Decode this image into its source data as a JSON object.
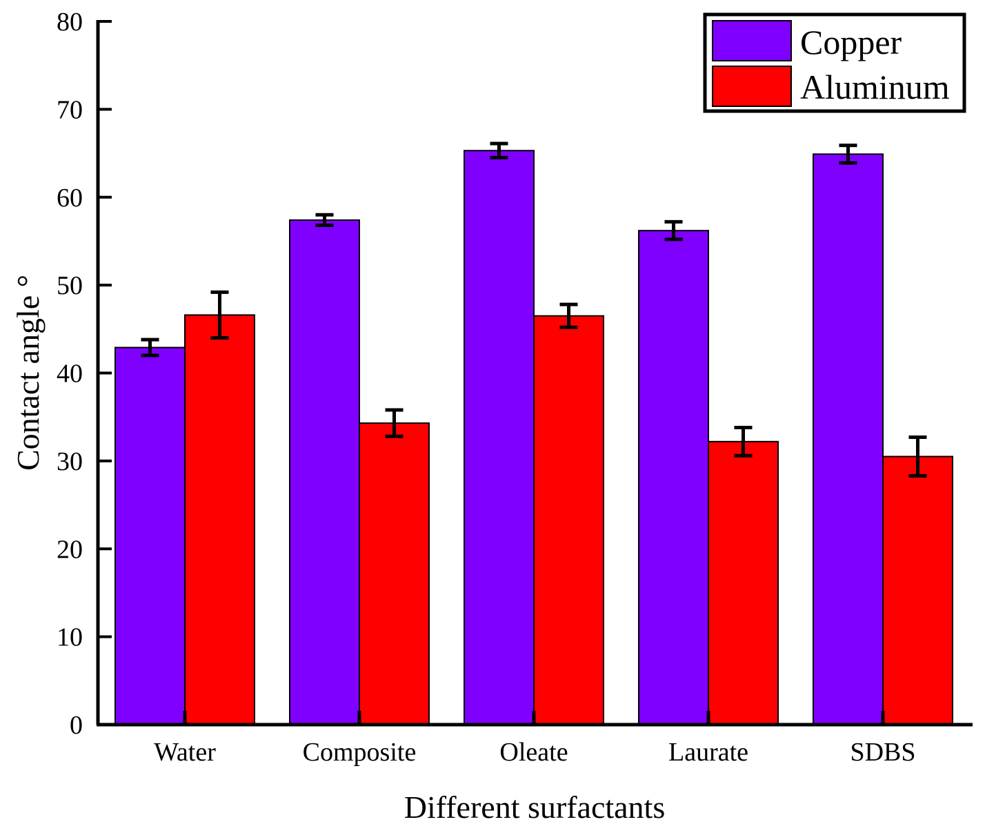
{
  "chart_data": {
    "type": "bar",
    "title": "",
    "xlabel": "Different surfactants",
    "ylabel": "Contact angle °",
    "ylim": [
      0,
      80
    ],
    "yticks": [
      0,
      10,
      20,
      30,
      40,
      50,
      60,
      70,
      80
    ],
    "grid": false,
    "legend_position": "top-right",
    "categories": [
      "Water",
      "Composite",
      "Oleate",
      "Laurate",
      "SDBS"
    ],
    "series": [
      {
        "name": "Copper",
        "color": "#8000ff",
        "values": [
          42.9,
          57.4,
          65.3,
          56.2,
          64.9
        ],
        "errors": [
          0.9,
          0.6,
          0.8,
          1.0,
          1.0
        ]
      },
      {
        "name": "Aluminum",
        "color": "#ff0000",
        "values": [
          46.6,
          34.3,
          46.5,
          32.2,
          30.5
        ],
        "errors": [
          2.6,
          1.5,
          1.3,
          1.6,
          2.2
        ]
      }
    ]
  }
}
